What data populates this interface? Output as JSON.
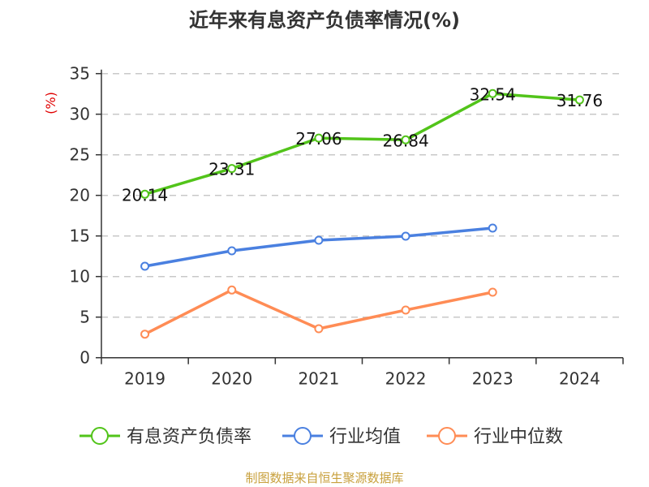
{
  "chart_data": {
    "type": "line",
    "title": "近年来有息资产负债率情况(%)",
    "ylabel": "(%)",
    "categories": [
      "2019",
      "2020",
      "2021",
      "2022",
      "2023",
      "2024"
    ],
    "ylim": [
      0,
      35
    ],
    "yticks": [
      0,
      5,
      10,
      15,
      20,
      25,
      30,
      35
    ],
    "grid": true,
    "legend_placement": "bottom",
    "series": [
      {
        "name": "有息资产负债率",
        "color": "#52c41a",
        "values": [
          20.14,
          23.31,
          27.06,
          26.84,
          32.54,
          31.76
        ],
        "labels": [
          "20.14",
          "23.31",
          "27.06",
          "26.84",
          "32.54",
          "31.76"
        ]
      },
      {
        "name": "行业均值",
        "color": "#4a80e0",
        "values": [
          11.27,
          13.17,
          14.47,
          14.97,
          15.97,
          null
        ]
      },
      {
        "name": "行业中位数",
        "color": "#ff8c55",
        "values": [
          2.9,
          8.34,
          3.57,
          5.87,
          8.07,
          null
        ]
      }
    ]
  },
  "source": "制图数据来自恒生聚源数据库",
  "colors": {
    "ylabel": "#e00000",
    "grid": "#c8c8c8",
    "axis": "#333333"
  }
}
